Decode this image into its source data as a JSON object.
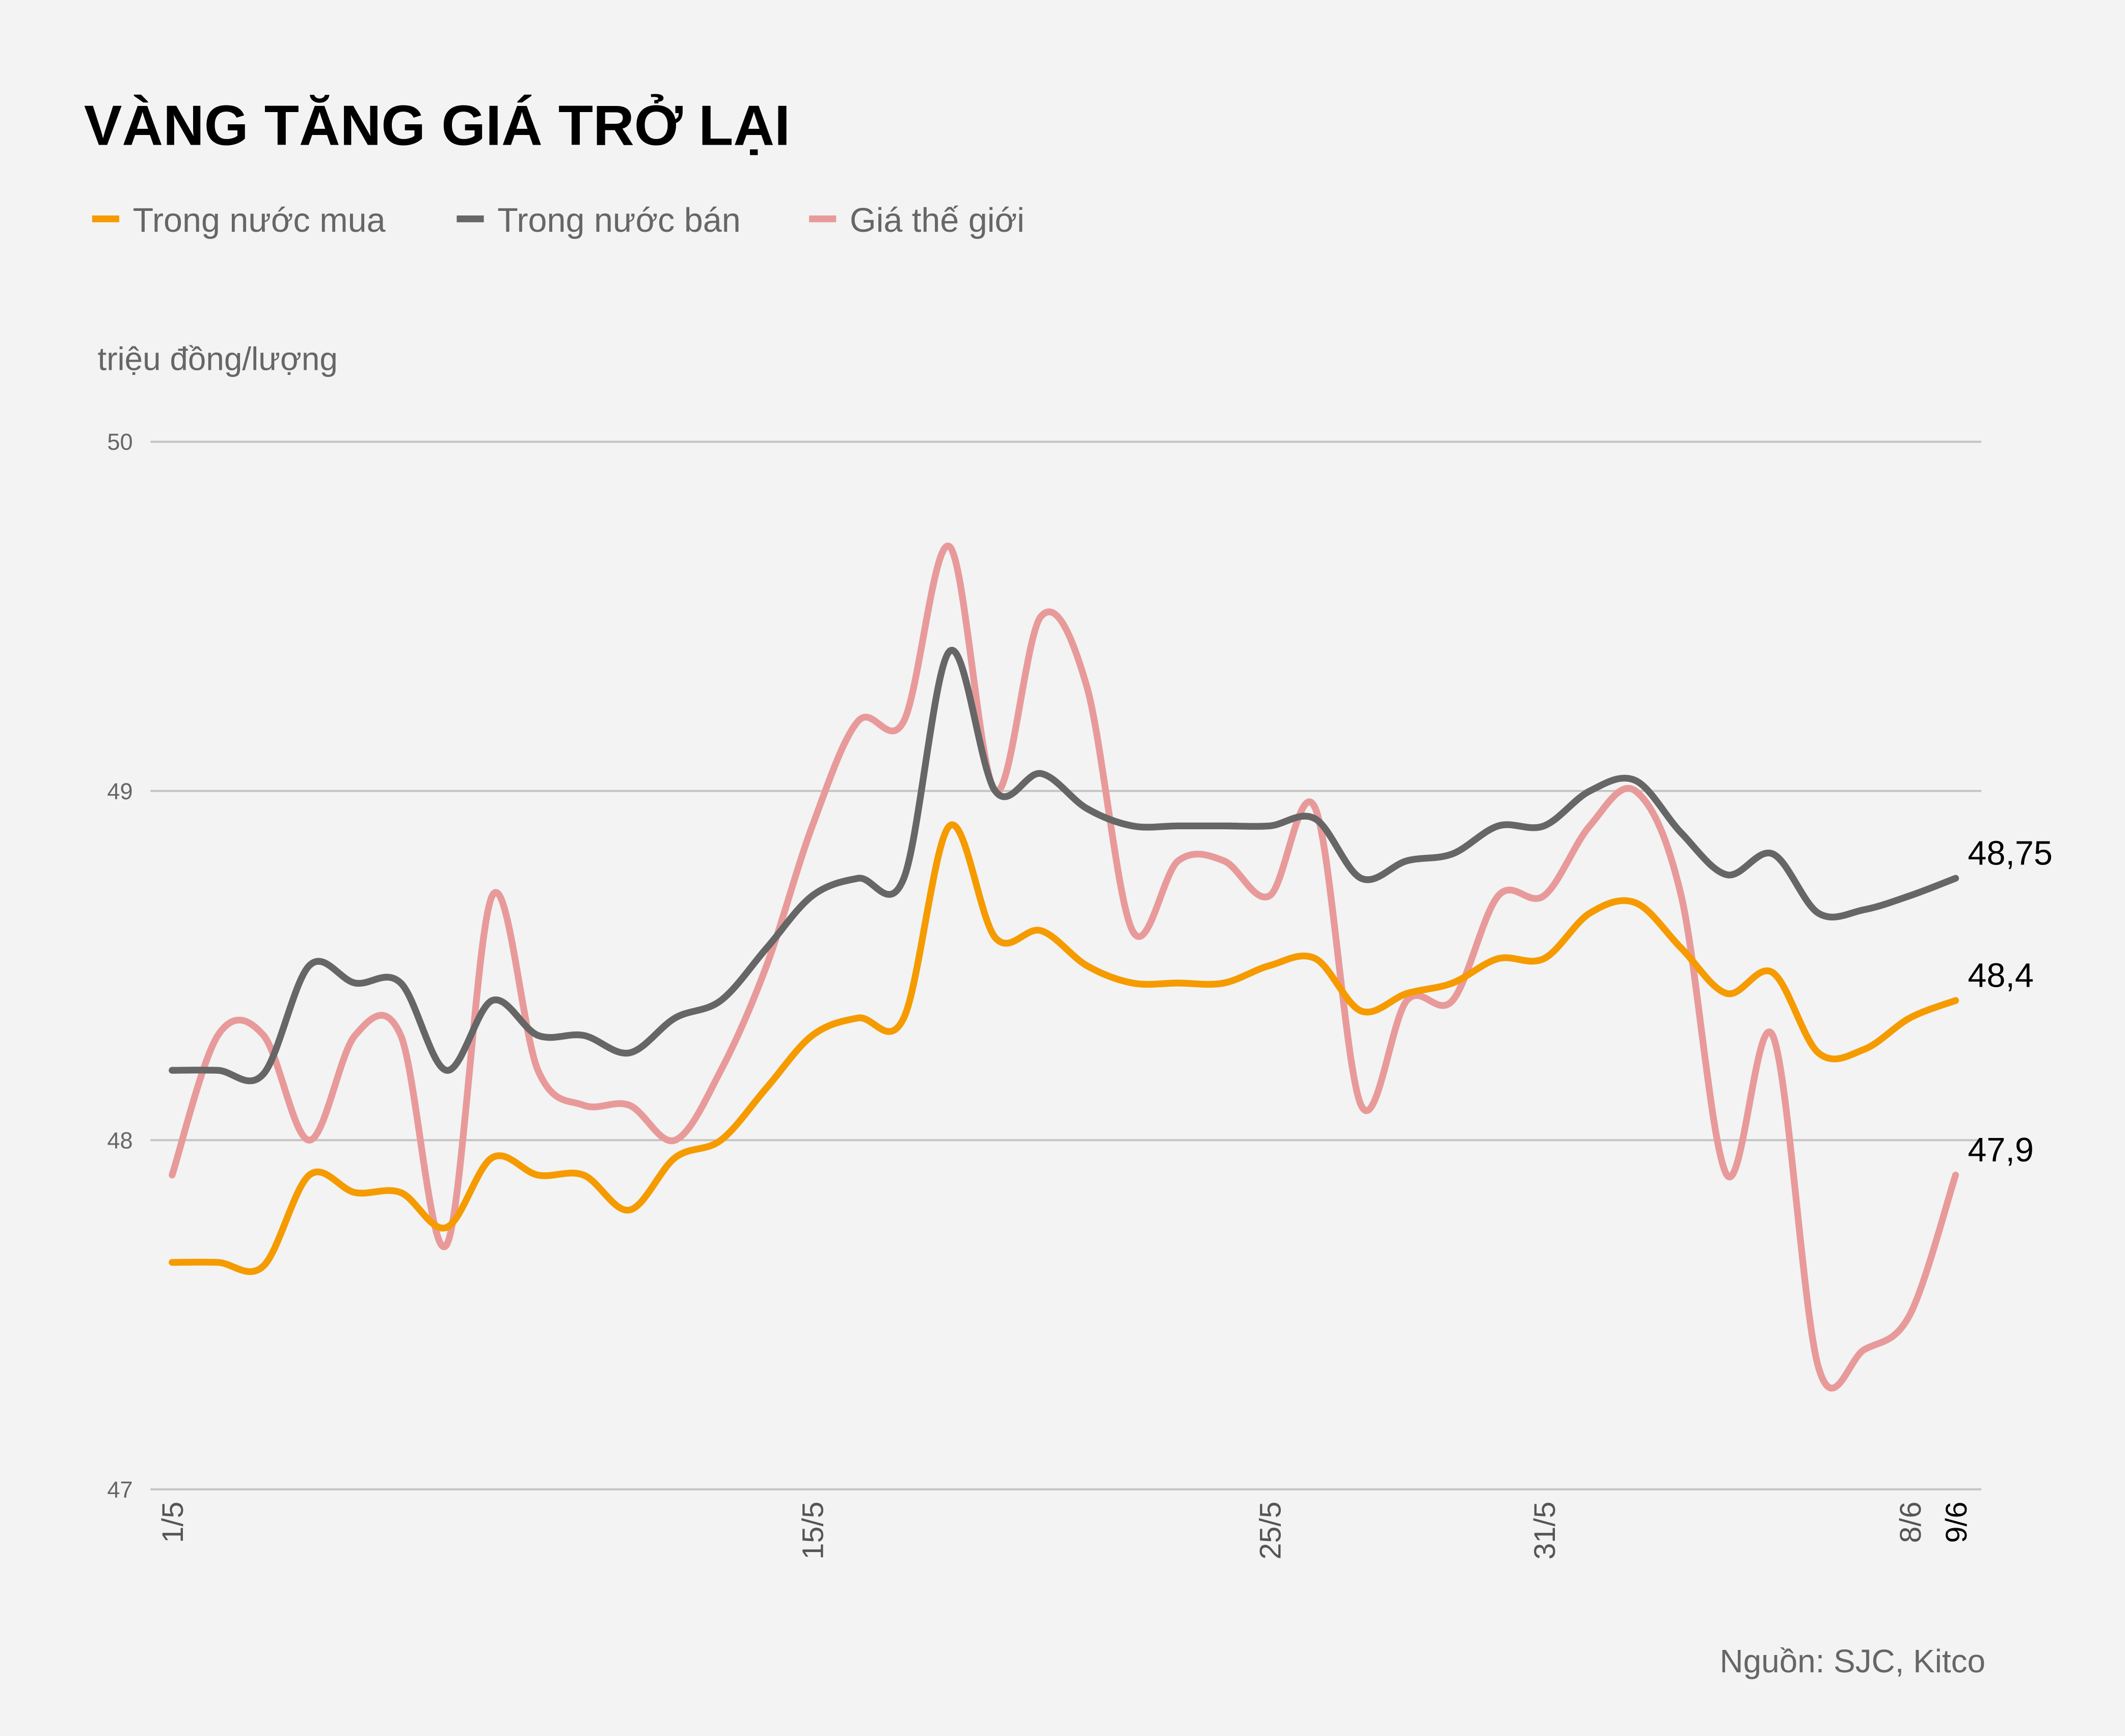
{
  "chart_data": {
    "type": "line",
    "title": "VÀNG TĂNG GIÁ TRỞ LẠI",
    "ylabel": "triệu đồng/lượng",
    "xlabel": "",
    "source": "Nguồn: SJC, Kitco",
    "ylim": [
      47,
      50
    ],
    "yticks": [
      "47",
      "48",
      "49",
      "50"
    ],
    "grid": true,
    "legend_position": "top-left",
    "x": [
      "1/5",
      "2/5",
      "3/5",
      "4/5",
      "5/5",
      "6/5",
      "7/5",
      "8/5",
      "9/5",
      "10/5",
      "11/5",
      "12/5",
      "13/5",
      "14/5",
      "15/5",
      "16/5",
      "17/5",
      "18/5",
      "19/5",
      "20/5",
      "21/5",
      "22/5",
      "23/5",
      "24/5",
      "25/5",
      "26/5",
      "27/5",
      "28/5",
      "29/5",
      "30/5",
      "31/5",
      "1/6",
      "2/6",
      "3/6",
      "4/6",
      "5/6",
      "6/6",
      "7/6",
      "8/6",
      "9/6"
    ],
    "xtick_labels": [
      "1/5",
      "15/5",
      "25/5",
      "31/5",
      "8/6",
      "9/6"
    ],
    "series": [
      {
        "name": "Trong nước mua",
        "color": "#f59b00",
        "end_label": "48,4",
        "values": [
          47.65,
          47.65,
          47.64,
          47.9,
          47.85,
          47.85,
          47.75,
          47.95,
          47.9,
          47.9,
          47.8,
          47.95,
          48.0,
          48.15,
          48.3,
          48.35,
          48.35,
          48.9,
          48.58,
          48.6,
          48.5,
          48.45,
          48.45,
          48.45,
          48.5,
          48.52,
          48.37,
          48.42,
          48.45,
          48.52,
          48.52,
          48.65,
          48.68,
          48.55,
          48.42,
          48.48,
          48.25,
          48.26,
          48.35,
          48.4
        ]
      },
      {
        "name": "Trong nước bán",
        "color": "#666666",
        "end_label": "48,75",
        "values": [
          48.2,
          48.2,
          48.19,
          48.5,
          48.45,
          48.45,
          48.2,
          48.4,
          48.3,
          48.3,
          48.25,
          48.35,
          48.4,
          48.55,
          48.7,
          48.75,
          48.75,
          49.4,
          49.0,
          49.05,
          48.95,
          48.9,
          48.9,
          48.9,
          48.9,
          48.92,
          48.75,
          48.8,
          48.82,
          48.9,
          48.9,
          49.0,
          49.03,
          48.88,
          48.76,
          48.82,
          48.65,
          48.66,
          48.7,
          48.75
        ]
      },
      {
        "name": "Giá thế giới",
        "color": "#e89a9a",
        "end_label": "47,9",
        "values": [
          47.9,
          48.3,
          48.3,
          48.0,
          48.3,
          48.3,
          47.7,
          48.7,
          48.2,
          48.1,
          48.1,
          48.0,
          48.2,
          48.5,
          48.9,
          49.2,
          49.2,
          49.7,
          49.0,
          49.5,
          49.3,
          48.6,
          48.8,
          48.8,
          48.7,
          48.95,
          48.1,
          48.4,
          48.4,
          48.7,
          48.7,
          48.9,
          49.0,
          48.7,
          47.9,
          48.3,
          47.35,
          47.4,
          47.5,
          47.9
        ]
      }
    ]
  }
}
